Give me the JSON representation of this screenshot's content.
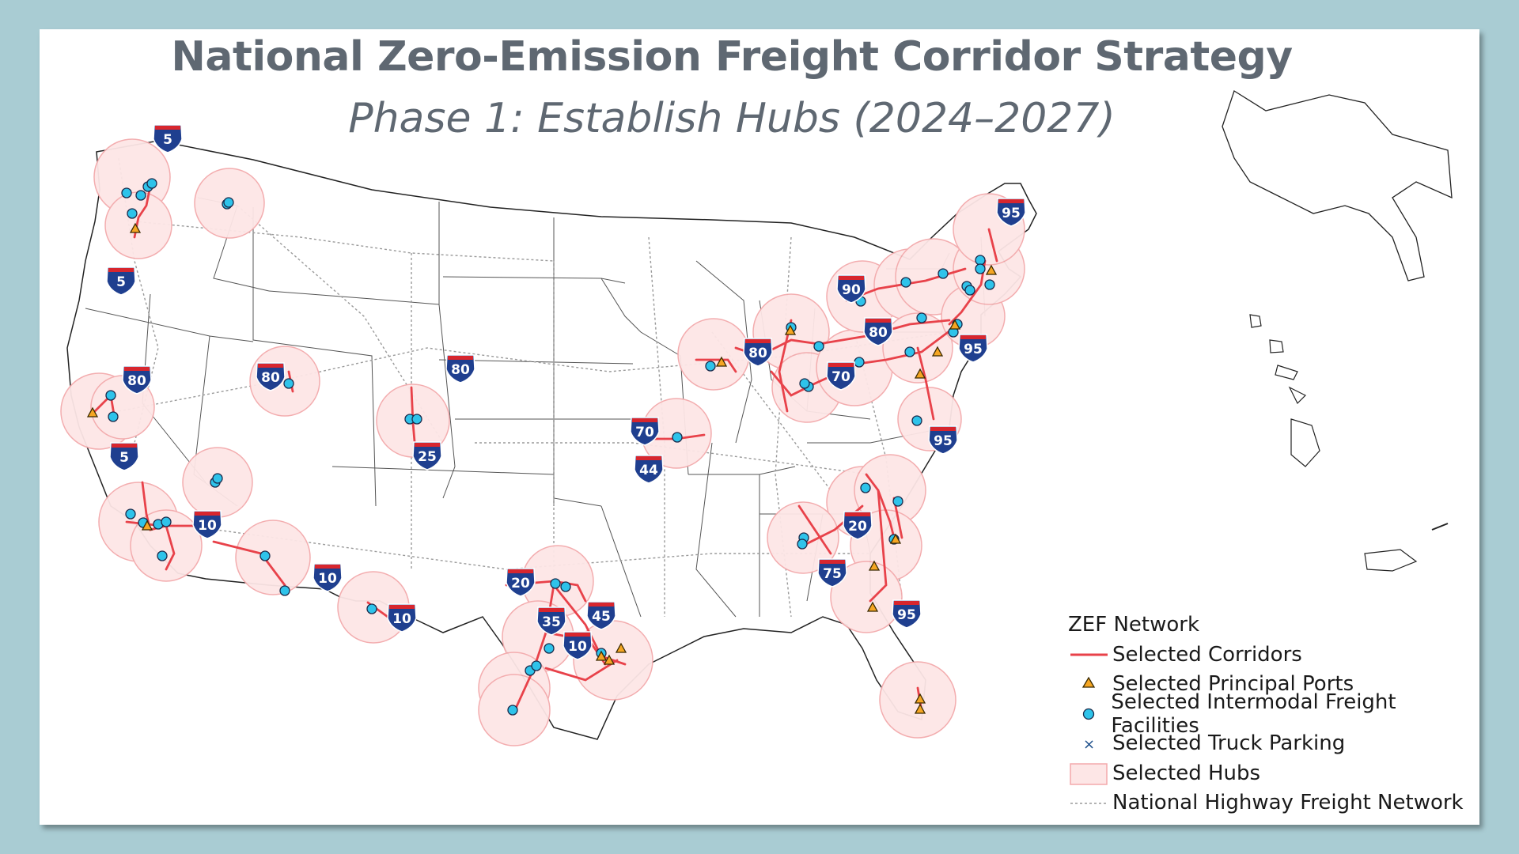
{
  "title": "National Zero-Emission Freight Corridor Strategy",
  "subtitle": "Phase 1: Establish Hubs (2024–2027)",
  "legend": {
    "title": "ZEF Network",
    "items": [
      {
        "label": "Selected Corridors",
        "symbol": "red-line-icon"
      },
      {
        "label": "Selected Principal Ports",
        "symbol": "orange-triangle-icon"
      },
      {
        "label": "Selected Intermodal Freight Facilities",
        "symbol": "cyan-circle-icon"
      },
      {
        "label": "Selected Truck Parking",
        "symbol": "x-mark-icon"
      },
      {
        "label": "Selected Hubs",
        "symbol": "pink-square-icon"
      },
      {
        "label": "National Highway Freight Network",
        "symbol": "dotted-line-icon"
      }
    ]
  },
  "colors": {
    "background": "#a9ccd3",
    "corridor": "#e8424a",
    "hub_fill": "#fde6e6",
    "hub_stroke": "#f3a9ab",
    "facility": "#2ec3ea",
    "port": "#f5a623",
    "shield_blue": "#1f3f8f",
    "shield_red": "#d7262e",
    "title_text": "#5f6872"
  },
  "interstate_shields": [
    "5",
    "5",
    "80",
    "5",
    "80",
    "80",
    "25",
    "10",
    "10",
    "10",
    "20",
    "35",
    "45",
    "10",
    "70",
    "44",
    "80",
    "70",
    "90",
    "80",
    "95",
    "95",
    "20",
    "75",
    "95",
    "95"
  ]
}
